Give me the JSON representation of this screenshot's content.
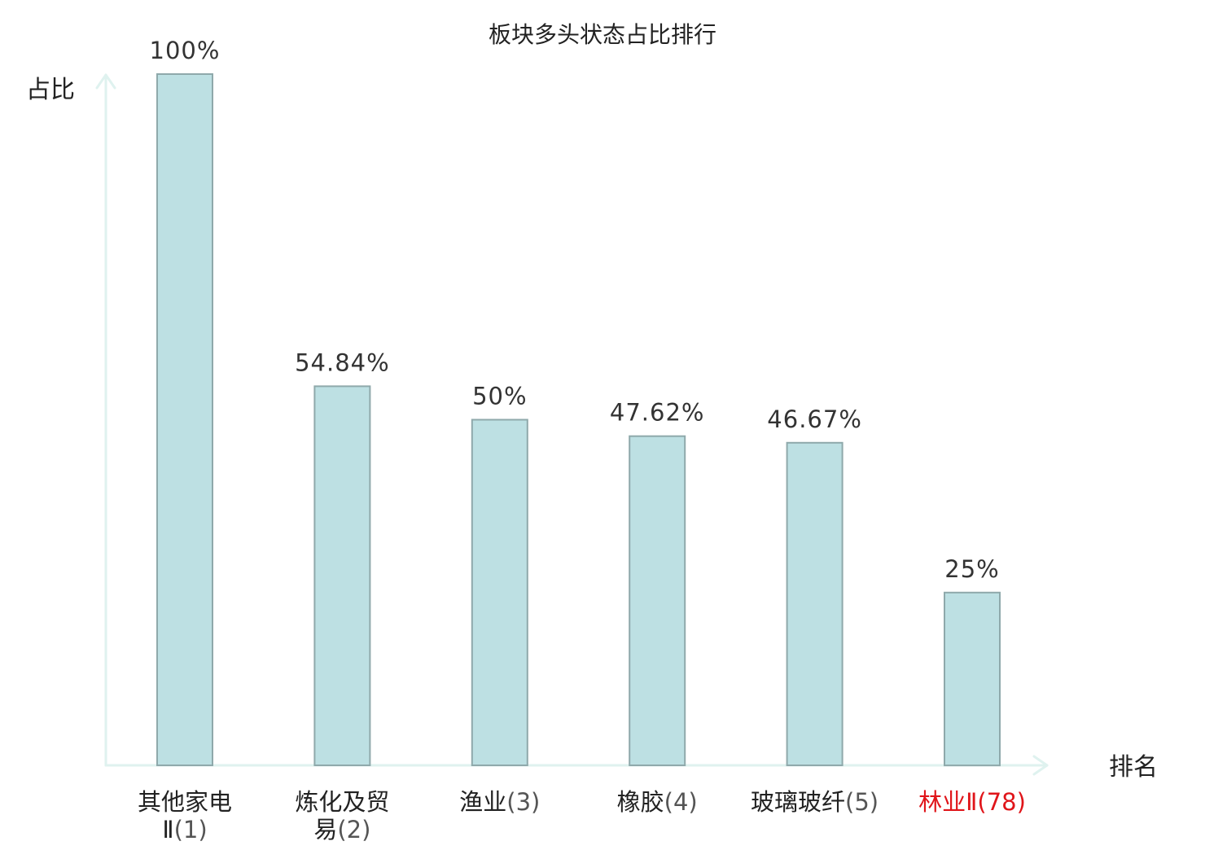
{
  "chart_data": {
    "type": "bar",
    "title": "板块多头状态占比排行",
    "ylabel": "占比",
    "xlabel": "排名",
    "ylim": [
      0,
      100
    ],
    "grid": false,
    "categories": [
      {
        "name_lines": [
          "其他家电",
          "Ⅱ"
        ],
        "rank": "(1)",
        "highlight": false
      },
      {
        "name_lines": [
          "炼化及贸",
          "易"
        ],
        "rank": "(2)",
        "highlight": false
      },
      {
        "name_lines": [
          "渔业"
        ],
        "rank": "(3)",
        "highlight": false
      },
      {
        "name_lines": [
          "橡胶"
        ],
        "rank": "(4)",
        "highlight": false
      },
      {
        "name_lines": [
          "玻璃玻纤"
        ],
        "rank": "(5)",
        "highlight": false
      },
      {
        "name_lines": [
          "林业Ⅱ"
        ],
        "rank": "(78)",
        "highlight": true
      }
    ],
    "values": [
      100,
      54.84,
      50,
      47.62,
      46.67,
      25
    ],
    "value_labels": [
      "100%",
      "54.84%",
      "50%",
      "47.62%",
      "46.67%",
      "25%"
    ],
    "colors": {
      "bar_fill": "#bde0e3",
      "bar_stroke": "#8fa9ab",
      "axis": "#dff2ef",
      "highlight_text": "#e0151a"
    }
  }
}
